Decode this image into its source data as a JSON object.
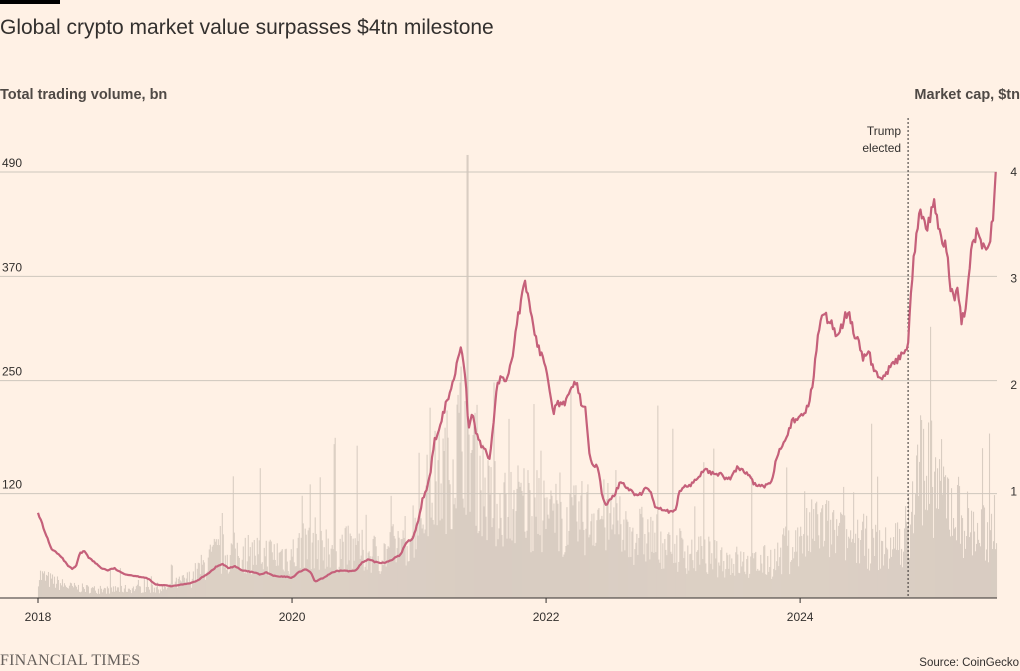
{
  "header": {
    "title": "Global crypto market value surpasses $4tn milestone"
  },
  "footer": {
    "logo": "FINANCIAL TIMES",
    "source": "Source: CoinGecko"
  },
  "colors": {
    "market_cap_line": "#C5607A",
    "volume_bars": "#D9CDC2",
    "gridline": "#CEC6BD",
    "background": "#FFF1E5"
  },
  "chart_data": {
    "type": "line",
    "title": "Global crypto market value surpasses $4tn milestone",
    "left_axis": {
      "label": "Total trading volume, bn",
      "ticks": [
        120,
        250,
        370,
        490
      ],
      "tick_labels": [
        "120",
        "250",
        "370",
        "490"
      ],
      "range": [
        0,
        490
      ]
    },
    "right_axis": {
      "label": "Market cap, $tn",
      "ticks": [
        1,
        2,
        3,
        4
      ],
      "tick_labels": [
        "1",
        "2",
        "3",
        "4"
      ],
      "range": [
        0,
        4
      ]
    },
    "x_axis": {
      "range": [
        2018.0,
        2025.55
      ],
      "ticks": [
        2018,
        2020,
        2022,
        2024
      ],
      "tick_labels": [
        "2018",
        "2020",
        "2022",
        "2024"
      ]
    },
    "annotation": {
      "x": 2024.85,
      "label_line1": "Trump",
      "label_line2": "elected"
    },
    "series": [
      {
        "name": "Market cap, $tn",
        "axis": "right",
        "type": "line",
        "points": [
          [
            2018.0,
            0.8
          ],
          [
            2018.02,
            0.75
          ],
          [
            2018.05,
            0.62
          ],
          [
            2018.08,
            0.55
          ],
          [
            2018.1,
            0.47
          ],
          [
            2018.13,
            0.44
          ],
          [
            2018.17,
            0.4
          ],
          [
            2018.2,
            0.36
          ],
          [
            2018.23,
            0.31
          ],
          [
            2018.27,
            0.27
          ],
          [
            2018.3,
            0.3
          ],
          [
            2018.33,
            0.42
          ],
          [
            2018.37,
            0.44
          ],
          [
            2018.4,
            0.38
          ],
          [
            2018.45,
            0.33
          ],
          [
            2018.5,
            0.28
          ],
          [
            2018.55,
            0.26
          ],
          [
            2018.6,
            0.28
          ],
          [
            2018.65,
            0.24
          ],
          [
            2018.7,
            0.22
          ],
          [
            2018.75,
            0.21
          ],
          [
            2018.8,
            0.2
          ],
          [
            2018.85,
            0.19
          ],
          [
            2018.88,
            0.17
          ],
          [
            2018.92,
            0.13
          ],
          [
            2018.96,
            0.12
          ],
          [
            2019.0,
            0.12
          ],
          [
            2019.05,
            0.11
          ],
          [
            2019.1,
            0.12
          ],
          [
            2019.15,
            0.13
          ],
          [
            2019.2,
            0.14
          ],
          [
            2019.25,
            0.16
          ],
          [
            2019.3,
            0.2
          ],
          [
            2019.35,
            0.24
          ],
          [
            2019.4,
            0.29
          ],
          [
            2019.45,
            0.32
          ],
          [
            2019.5,
            0.28
          ],
          [
            2019.55,
            0.3
          ],
          [
            2019.6,
            0.26
          ],
          [
            2019.65,
            0.25
          ],
          [
            2019.7,
            0.24
          ],
          [
            2019.75,
            0.22
          ],
          [
            2019.8,
            0.24
          ],
          [
            2019.85,
            0.21
          ],
          [
            2019.9,
            0.2
          ],
          [
            2019.95,
            0.2
          ],
          [
            2020.0,
            0.19
          ],
          [
            2020.05,
            0.24
          ],
          [
            2020.1,
            0.27
          ],
          [
            2020.15,
            0.24
          ],
          [
            2020.18,
            0.15
          ],
          [
            2020.21,
            0.17
          ],
          [
            2020.25,
            0.19
          ],
          [
            2020.3,
            0.23
          ],
          [
            2020.35,
            0.25
          ],
          [
            2020.4,
            0.26
          ],
          [
            2020.45,
            0.25
          ],
          [
            2020.5,
            0.26
          ],
          [
            2020.55,
            0.33
          ],
          [
            2020.6,
            0.36
          ],
          [
            2020.65,
            0.34
          ],
          [
            2020.7,
            0.33
          ],
          [
            2020.75,
            0.34
          ],
          [
            2020.8,
            0.37
          ],
          [
            2020.85,
            0.4
          ],
          [
            2020.9,
            0.52
          ],
          [
            2020.95,
            0.56
          ],
          [
            2021.0,
            0.75
          ],
          [
            2021.03,
            0.95
          ],
          [
            2021.06,
            1.0
          ],
          [
            2021.09,
            1.18
          ],
          [
            2021.12,
            1.48
          ],
          [
            2021.15,
            1.53
          ],
          [
            2021.18,
            1.68
          ],
          [
            2021.22,
            1.86
          ],
          [
            2021.26,
            2.0
          ],
          [
            2021.3,
            2.2
          ],
          [
            2021.33,
            2.4
          ],
          [
            2021.36,
            2.15
          ],
          [
            2021.39,
            1.6
          ],
          [
            2021.42,
            1.72
          ],
          [
            2021.45,
            1.55
          ],
          [
            2021.48,
            1.45
          ],
          [
            2021.52,
            1.4
          ],
          [
            2021.55,
            1.28
          ],
          [
            2021.58,
            1.55
          ],
          [
            2021.61,
            1.98
          ],
          [
            2021.65,
            2.1
          ],
          [
            2021.68,
            2.0
          ],
          [
            2021.71,
            2.15
          ],
          [
            2021.74,
            2.3
          ],
          [
            2021.77,
            2.6
          ],
          [
            2021.8,
            2.75
          ],
          [
            2021.83,
            2.95
          ],
          [
            2021.86,
            2.85
          ],
          [
            2021.89,
            2.6
          ],
          [
            2021.92,
            2.45
          ],
          [
            2021.95,
            2.3
          ],
          [
            2022.0,
            2.2
          ],
          [
            2022.03,
            1.95
          ],
          [
            2022.06,
            1.75
          ],
          [
            2022.09,
            1.85
          ],
          [
            2022.12,
            1.8
          ],
          [
            2022.16,
            1.85
          ],
          [
            2022.2,
            1.95
          ],
          [
            2022.24,
            2.05
          ],
          [
            2022.28,
            1.8
          ],
          [
            2022.31,
            1.8
          ],
          [
            2022.34,
            1.35
          ],
          [
            2022.37,
            1.25
          ],
          [
            2022.41,
            1.22
          ],
          [
            2022.44,
            0.97
          ],
          [
            2022.47,
            0.88
          ],
          [
            2022.51,
            0.92
          ],
          [
            2022.55,
            1.0
          ],
          [
            2022.59,
            1.1
          ],
          [
            2022.63,
            1.05
          ],
          [
            2022.67,
            1.0
          ],
          [
            2022.71,
            0.97
          ],
          [
            2022.75,
            0.97
          ],
          [
            2022.79,
            1.05
          ],
          [
            2022.83,
            0.97
          ],
          [
            2022.86,
            0.86
          ],
          [
            2022.9,
            0.84
          ],
          [
            2022.94,
            0.83
          ],
          [
            2022.98,
            0.8
          ],
          [
            2023.02,
            0.82
          ],
          [
            2023.05,
            1.0
          ],
          [
            2023.09,
            1.05
          ],
          [
            2023.13,
            1.05
          ],
          [
            2023.17,
            1.1
          ],
          [
            2023.21,
            1.15
          ],
          [
            2023.25,
            1.22
          ],
          [
            2023.29,
            1.18
          ],
          [
            2023.33,
            1.15
          ],
          [
            2023.37,
            1.18
          ],
          [
            2023.41,
            1.12
          ],
          [
            2023.45,
            1.12
          ],
          [
            2023.5,
            1.22
          ],
          [
            2023.54,
            1.2
          ],
          [
            2023.58,
            1.18
          ],
          [
            2023.62,
            1.1
          ],
          [
            2023.66,
            1.05
          ],
          [
            2023.7,
            1.05
          ],
          [
            2023.74,
            1.05
          ],
          [
            2023.78,
            1.12
          ],
          [
            2023.82,
            1.35
          ],
          [
            2023.86,
            1.45
          ],
          [
            2023.9,
            1.55
          ],
          [
            2023.94,
            1.66
          ],
          [
            2023.98,
            1.66
          ],
          [
            2024.02,
            1.72
          ],
          [
            2024.06,
            1.8
          ],
          [
            2024.1,
            2.0
          ],
          [
            2024.14,
            2.5
          ],
          [
            2024.18,
            2.7
          ],
          [
            2024.22,
            2.6
          ],
          [
            2024.26,
            2.55
          ],
          [
            2024.3,
            2.45
          ],
          [
            2024.34,
            2.6
          ],
          [
            2024.38,
            2.7
          ],
          [
            2024.42,
            2.5
          ],
          [
            2024.46,
            2.4
          ],
          [
            2024.5,
            2.25
          ],
          [
            2024.54,
            2.3
          ],
          [
            2024.58,
            2.15
          ],
          [
            2024.62,
            2.05
          ],
          [
            2024.66,
            2.1
          ],
          [
            2024.7,
            2.15
          ],
          [
            2024.74,
            2.2
          ],
          [
            2024.78,
            2.25
          ],
          [
            2024.82,
            2.3
          ],
          [
            2024.85,
            2.4
          ],
          [
            2024.88,
            3.0
          ],
          [
            2024.91,
            3.35
          ],
          [
            2024.94,
            3.6
          ],
          [
            2024.97,
            3.55
          ],
          [
            2025.0,
            3.45
          ],
          [
            2025.03,
            3.6
          ],
          [
            2025.06,
            3.7
          ],
          [
            2025.09,
            3.5
          ],
          [
            2025.12,
            3.3
          ],
          [
            2025.15,
            3.3
          ],
          [
            2025.18,
            2.95
          ],
          [
            2025.21,
            2.8
          ],
          [
            2025.24,
            2.9
          ],
          [
            2025.27,
            2.6
          ],
          [
            2025.3,
            2.7
          ],
          [
            2025.33,
            3.1
          ],
          [
            2025.36,
            3.35
          ],
          [
            2025.4,
            3.45
          ],
          [
            2025.43,
            3.3
          ],
          [
            2025.46,
            3.25
          ],
          [
            2025.49,
            3.3
          ],
          [
            2025.52,
            3.6
          ],
          [
            2025.54,
            4.0
          ]
        ]
      },
      {
        "name": "Total trading volume, bn",
        "axis": "left",
        "type": "bar",
        "envelope": [
          [
            2018.0,
            30
          ],
          [
            2018.1,
            22
          ],
          [
            2018.25,
            14
          ],
          [
            2018.5,
            10
          ],
          [
            2018.75,
            12
          ],
          [
            2019.0,
            12
          ],
          [
            2019.2,
            25
          ],
          [
            2019.4,
            55
          ],
          [
            2019.6,
            58
          ],
          [
            2019.8,
            55
          ],
          [
            2020.0,
            55
          ],
          [
            2020.15,
            70
          ],
          [
            2020.3,
            68
          ],
          [
            2020.5,
            60
          ],
          [
            2020.7,
            55
          ],
          [
            2020.9,
            75
          ],
          [
            2021.0,
            105
          ],
          [
            2021.1,
            140
          ],
          [
            2021.25,
            170
          ],
          [
            2021.35,
            220
          ],
          [
            2021.45,
            170
          ],
          [
            2021.55,
            120
          ],
          [
            2021.7,
            120
          ],
          [
            2021.85,
            120
          ],
          [
            2022.0,
            105
          ],
          [
            2022.2,
            95
          ],
          [
            2022.4,
            110
          ],
          [
            2022.6,
            85
          ],
          [
            2022.8,
            78
          ],
          [
            2023.0,
            65
          ],
          [
            2023.2,
            55
          ],
          [
            2023.4,
            50
          ],
          [
            2023.6,
            42
          ],
          [
            2023.8,
            48
          ],
          [
            2024.0,
            70
          ],
          [
            2024.15,
            95
          ],
          [
            2024.3,
            78
          ],
          [
            2024.5,
            72
          ],
          [
            2024.7,
            60
          ],
          [
            2024.85,
            85
          ],
          [
            2024.95,
            175
          ],
          [
            2025.05,
            150
          ],
          [
            2025.2,
            118
          ],
          [
            2025.35,
            88
          ],
          [
            2025.5,
            78
          ],
          [
            2025.55,
            110
          ]
        ]
      }
    ]
  }
}
